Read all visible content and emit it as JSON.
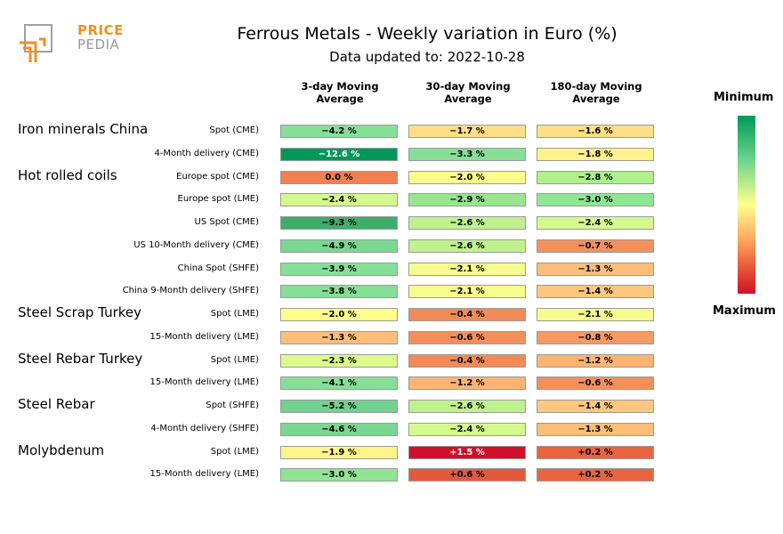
{
  "chart_data": {
    "type": "heatmap",
    "title": "Ferrous Metals - Weekly variation in Euro (%)",
    "subtitle": "Data updated to: 2022-10-28",
    "columns": [
      {
        "line1": "3-day Moving",
        "line2": "Average"
      },
      {
        "line1": "30-day Moving",
        "line2": "Average"
      },
      {
        "line1": "180-day Moving",
        "line2": "Average"
      }
    ],
    "color_scale": {
      "min_label": "Minimum",
      "max_label": "Maximum",
      "min_value": -12.6,
      "max_value": 1.5
    },
    "groups": [
      {
        "name": "Iron minerals China",
        "rows": [
          {
            "label": "Spot (CME)",
            "values": [
              "−4.2 %",
              "−1.7 %",
              "−1.6 %"
            ],
            "colors": [
              "#86df96",
              "#fede86",
              "#fede86"
            ],
            "text_colors": [
              "#000000",
              "#000000",
              "#000000"
            ]
          },
          {
            "label": "4-Month delivery (CME)",
            "values": [
              "−12.6 %",
              "−3.3 %",
              "−1.8 %"
            ],
            "colors": [
              "#00975a",
              "#86df96",
              "#fef28c"
            ],
            "text_colors": [
              "#ffffff",
              "#000000",
              "#000000"
            ]
          }
        ]
      },
      {
        "name": "Hot rolled coils",
        "rows": [
          {
            "label": "Europe spot (CME)",
            "values": [
              "0.0 %",
              "−2.0 %",
              "−2.8 %"
            ],
            "colors": [
              "#f08050",
              "#ffff8c",
              "#adf08c"
            ],
            "text_colors": [
              "#000000",
              "#000000",
              "#000000"
            ]
          },
          {
            "label": "Europe spot (LME)",
            "values": [
              "−2.4 %",
              "−2.9 %",
              "−3.0 %"
            ],
            "colors": [
              "#d4f98c",
              "#97e68f",
              "#8ee693"
            ],
            "text_colors": [
              "#000000",
              "#000000",
              "#000000"
            ]
          },
          {
            "label": "US Spot (CME)",
            "values": [
              "−9.3 %",
              "−2.6 %",
              "−2.4 %"
            ],
            "colors": [
              "#3dae6a",
              "#bff28c",
              "#d4f98c"
            ],
            "text_colors": [
              "#000000",
              "#000000",
              "#000000"
            ]
          },
          {
            "label": "US 10-Month delivery (CME)",
            "values": [
              "−4.9 %",
              "−2.6 %",
              "−0.7 %"
            ],
            "colors": [
              "#7ad792",
              "#bff28c",
              "#f3905a"
            ],
            "text_colors": [
              "#000000",
              "#000000",
              "#000000"
            ]
          },
          {
            "label": "China Spot (SHFE)",
            "values": [
              "−3.9 %",
              "−2.1 %",
              "−1.3 %"
            ],
            "colors": [
              "#86df96",
              "#f6fd8c",
              "#fdbe78"
            ],
            "text_colors": [
              "#000000",
              "#000000",
              "#000000"
            ]
          },
          {
            "label": "China 9-Month delivery (SHFE)",
            "values": [
              "−3.8 %",
              "−2.1 %",
              "−1.4 %"
            ],
            "colors": [
              "#86df96",
              "#f6fd8c",
              "#fdc87d"
            ],
            "text_colors": [
              "#000000",
              "#000000",
              "#000000"
            ]
          }
        ]
      },
      {
        "name": "Steel Scrap Turkey",
        "rows": [
          {
            "label": "Spot (LME)",
            "values": [
              "−2.0 %",
              "−0.4 %",
              "−2.1 %"
            ],
            "colors": [
              "#ffff8c",
              "#f28a57",
              "#f6fd8c"
            ],
            "text_colors": [
              "#000000",
              "#000000",
              "#000000"
            ]
          },
          {
            "label": "15-Month delivery (LME)",
            "values": [
              "−1.3 %",
              "−0.6 %",
              "−0.8 %"
            ],
            "colors": [
              "#fdbe78",
              "#f3905a",
              "#f59a60"
            ],
            "text_colors": [
              "#000000",
              "#000000",
              "#000000"
            ]
          }
        ]
      },
      {
        "name": "Steel Rebar Turkey",
        "rows": [
          {
            "label": "Spot (LME)",
            "values": [
              "−2.3 %",
              "−0.4 %",
              "−1.2 %"
            ],
            "colors": [
              "#ddfa8c",
              "#f28a57",
              "#fdb472"
            ],
            "text_colors": [
              "#000000",
              "#000000",
              "#000000"
            ]
          },
          {
            "label": "15-Month delivery (LME)",
            "values": [
              "−4.1 %",
              "−1.2 %",
              "−0.6 %"
            ],
            "colors": [
              "#86df96",
              "#fdb472",
              "#f3905a"
            ],
            "text_colors": [
              "#000000",
              "#000000",
              "#000000"
            ]
          }
        ]
      },
      {
        "name": "Steel Rebar",
        "rows": [
          {
            "label": "Spot (SHFE)",
            "values": [
              "−5.2 %",
              "−2.6 %",
              "−1.4 %"
            ],
            "colors": [
              "#72d28f",
              "#bff28c",
              "#fdc87d"
            ],
            "text_colors": [
              "#000000",
              "#000000",
              "#000000"
            ]
          },
          {
            "label": "4-Month delivery (SHFE)",
            "values": [
              "−4.6 %",
              "−2.4 %",
              "−1.3 %"
            ],
            "colors": [
              "#7ad792",
              "#d4f98c",
              "#fdbe78"
            ],
            "text_colors": [
              "#000000",
              "#000000",
              "#000000"
            ]
          }
        ]
      },
      {
        "name": "Molybdenum",
        "rows": [
          {
            "label": "Spot (LME)",
            "values": [
              "−1.9 %",
              "+1.5 %",
              "+0.2 %"
            ],
            "colors": [
              "#fff48a",
              "#d0102a",
              "#e9643e"
            ],
            "text_colors": [
              "#000000",
              "#ffffff",
              "#000000"
            ]
          },
          {
            "label": "15-Month delivery (LME)",
            "values": [
              "−3.0 %",
              "+0.6 %",
              "+0.2 %"
            ],
            "colors": [
              "#8ee693",
              "#e35a3a",
              "#e9643e"
            ],
            "text_colors": [
              "#000000",
              "#000000",
              "#000000"
            ]
          }
        ]
      }
    ]
  },
  "logo": {
    "line1": "PRICE",
    "line2": "PEDIA"
  }
}
